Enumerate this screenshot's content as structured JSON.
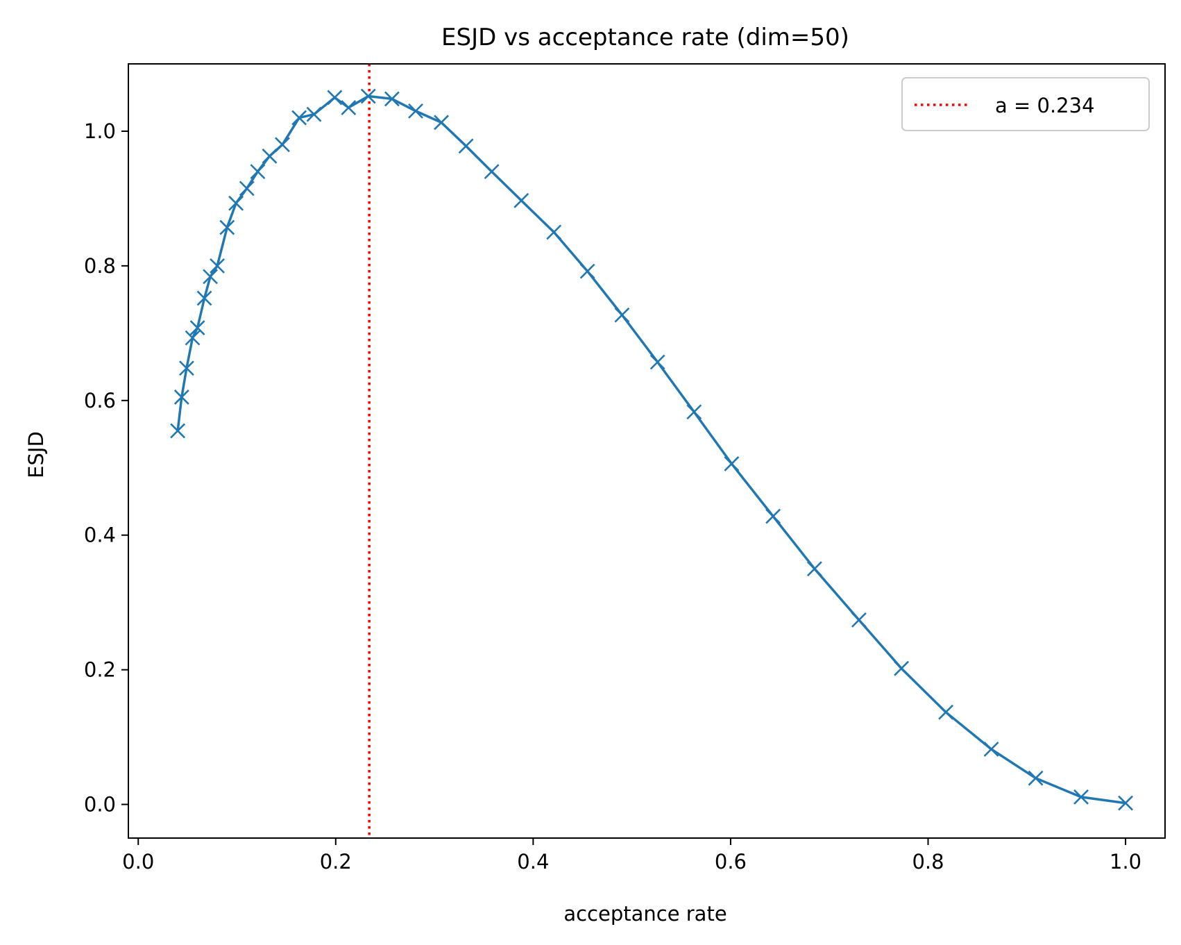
{
  "colors": {
    "series": "#1f77b4",
    "reference_line": "#ff0000",
    "axes": "#000000",
    "legend_border": "#cccccc"
  },
  "chart_data": {
    "type": "line",
    "title": "ESJD vs acceptance rate (dim=50)",
    "xlabel": "acceptance rate",
    "ylabel": "ESJD",
    "xlim": [
      -0.01,
      1.04
    ],
    "ylim": [
      -0.05,
      1.1
    ],
    "xticks": [
      0.0,
      0.2,
      0.4,
      0.6,
      0.8,
      1.0
    ],
    "xtick_labels": [
      "0.0",
      "0.2",
      "0.4",
      "0.6",
      "0.8",
      "1.0"
    ],
    "yticks": [
      0.0,
      0.2,
      0.4,
      0.6,
      0.8,
      1.0
    ],
    "ytick_labels": [
      "0.0",
      "0.2",
      "0.4",
      "0.6",
      "0.8",
      "1.0"
    ],
    "grid": false,
    "series": [
      {
        "name": "ESJD",
        "marker": "x",
        "x": [
          0.04,
          0.044,
          0.049,
          0.055,
          0.06,
          0.067,
          0.073,
          0.08,
          0.09,
          0.099,
          0.11,
          0.121,
          0.133,
          0.146,
          0.163,
          0.178,
          0.199,
          0.213,
          0.233,
          0.257,
          0.281,
          0.307,
          0.332,
          0.358,
          0.388,
          0.421,
          0.455,
          0.49,
          0.526,
          0.563,
          0.601,
          0.643,
          0.685,
          0.73,
          0.773,
          0.818,
          0.864,
          0.909,
          0.955,
          1.0
        ],
        "y": [
          0.555,
          0.605,
          0.648,
          0.693,
          0.708,
          0.752,
          0.784,
          0.8,
          0.857,
          0.893,
          0.915,
          0.94,
          0.963,
          0.98,
          1.02,
          1.025,
          1.05,
          1.035,
          1.052,
          1.048,
          1.03,
          1.013,
          0.978,
          0.94,
          0.897,
          0.85,
          0.792,
          0.727,
          0.657,
          0.583,
          0.506,
          0.428,
          0.35,
          0.274,
          0.202,
          0.137,
          0.082,
          0.039,
          0.011,
          0.002
        ]
      }
    ],
    "reference_line": {
      "orientation": "vertical",
      "x": 0.234,
      "style": "dotted",
      "label": "a = 0.234"
    },
    "legend": {
      "position": "top-right",
      "entries": [
        "a = 0.234"
      ]
    }
  }
}
